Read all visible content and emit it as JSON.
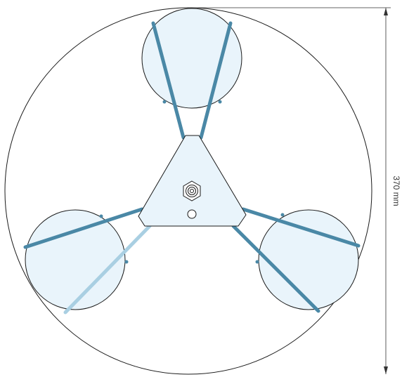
{
  "dimension": {
    "label": "370 mm"
  },
  "colors": {
    "outline": "#1a1a1a",
    "fill_light": "#e9f4fb",
    "rod_dark": "#4a88a6",
    "rod_light": "#a9cfe2",
    "dimension_line": "#333333"
  },
  "parts": {
    "outer_circle": "outer-boundary-circle",
    "pads": [
      "top-pad",
      "left-pad",
      "right-pad"
    ],
    "hub": "triangular-hub",
    "fitting": "center-nut-fitting",
    "hole": "mounting-hole"
  }
}
